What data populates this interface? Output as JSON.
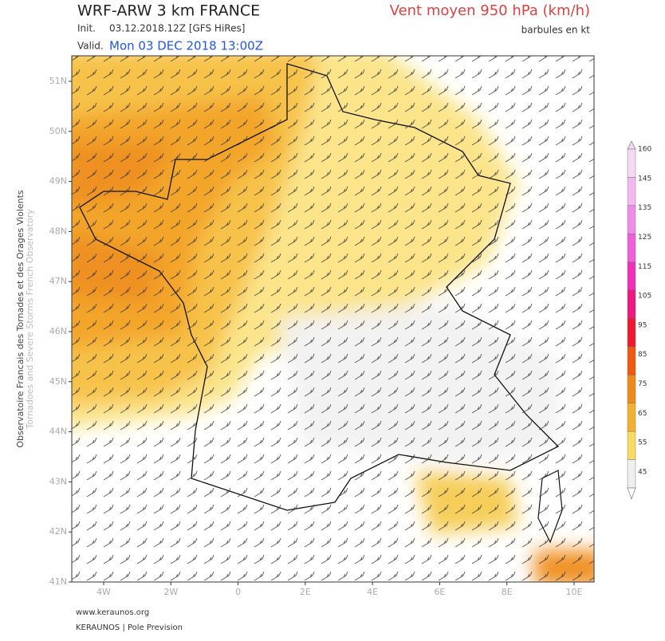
{
  "header": {
    "title": "WRF-ARW 3 km FRANCE",
    "parameter": "Vent moyen 950 hPa (km/h)",
    "init_label": "Init.",
    "init_value": "03.12.2018.12Z [GFS HiRes]",
    "valid_label": "Valid.",
    "valid_value": "Mon 03 DEC 2018 13:00Z",
    "units_note": "barbules en kt"
  },
  "side_text": {
    "line1": "Observatoire Francais des Tornades et des Orages Violents",
    "line2": "Tornadoes and Severe Storms French Observatory"
  },
  "map": {
    "lat_labels": [
      "51N",
      "50N",
      "49N",
      "48N",
      "47N",
      "46N",
      "45N",
      "44N",
      "43N",
      "42N",
      "41N"
    ],
    "lon_labels": [
      "4W",
      "2W",
      "0",
      "2E",
      "4E",
      "6E",
      "8E",
      "10E"
    ]
  },
  "colorbar": {
    "labels": [
      "160",
      "145",
      "135",
      "125",
      "115",
      "105",
      "95",
      "85",
      "75",
      "65",
      "55",
      "45"
    ],
    "colors": [
      "#f6d8f3",
      "#f3b8ef",
      "#f08ce8",
      "#f05fd8",
      "#f030b8",
      "#f01880",
      "#f01a30",
      "#f05a10",
      "#f08a18",
      "#f5b030",
      "#f8da60",
      "#eeeeee"
    ]
  },
  "footer": {
    "site": "www.keraunos.org",
    "brand": "KERAUNOS | Pole Prevision"
  }
}
